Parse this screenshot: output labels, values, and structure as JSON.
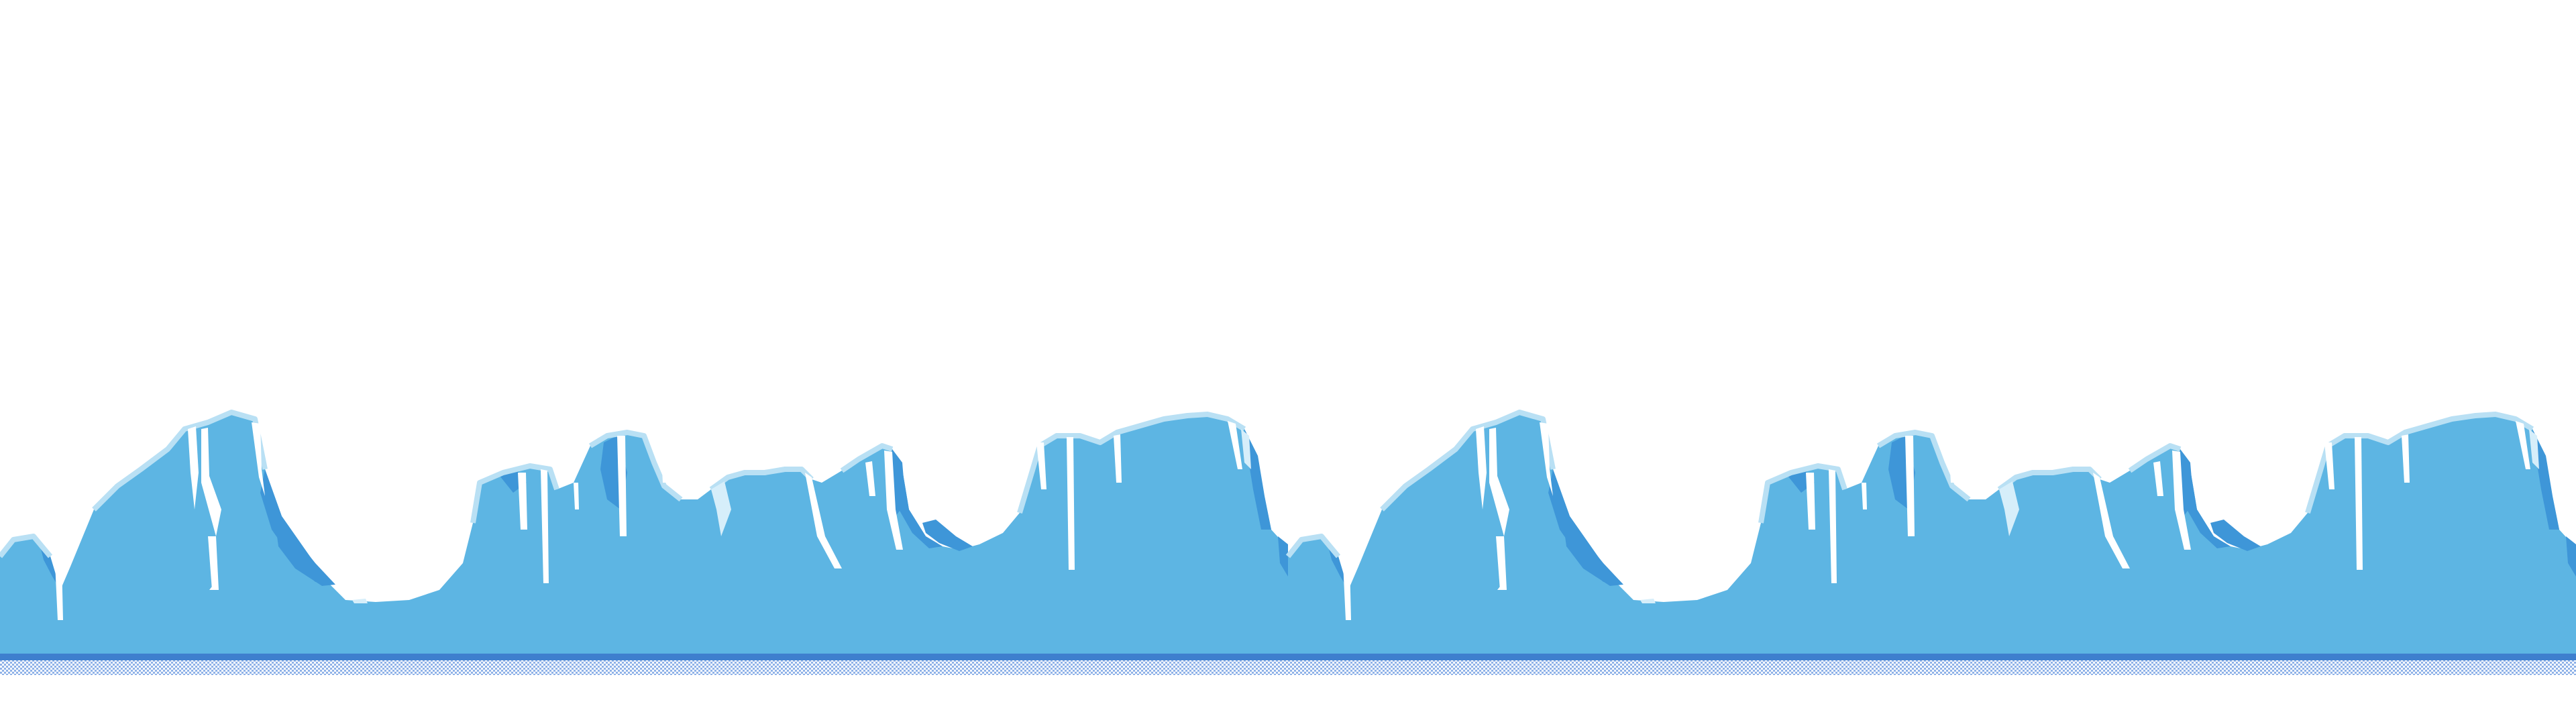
{
  "scene": {
    "type": "tileable-ice-terrain",
    "tile_repeats": 2,
    "has_text": false
  },
  "colors": {
    "sky": "#ffffff",
    "ice_body": "#5db5e3",
    "ice_shadow": "#3e96d8",
    "ice_highlight": "#ffffff",
    "ice_light": "#d6eefa",
    "ice_rim": "#b9e0f4",
    "floor_line": "#3e7fce",
    "floor_pattern_a": "#8fb2e8",
    "floor_pattern_b": "#ffffff"
  }
}
